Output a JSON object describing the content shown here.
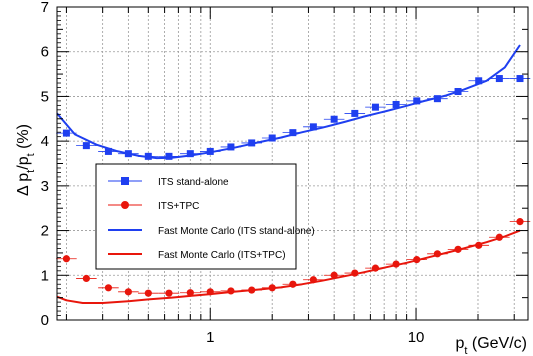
{
  "chart_data": {
    "type": "scatter",
    "xlabel": "p",
    "xlabel_sub": "t",
    "xlabel_units": " (GeV/c)",
    "ylabel": "Δ p",
    "ylabel_sub1": "t",
    "ylabel_mid": "/p",
    "ylabel_sub2": "t",
    "ylabel_units": " (%)",
    "xscale": "log",
    "xlim": [
      0.18,
      35
    ],
    "ylim": [
      0,
      7
    ],
    "x_ticks": [
      {
        "value": 1,
        "label": "1"
      },
      {
        "value": 10,
        "label": "10"
      }
    ],
    "y_ticks": [
      "0",
      "1",
      "2",
      "3",
      "4",
      "5",
      "6",
      "7"
    ],
    "grid": "dashed",
    "legend_position": "center-left",
    "series": [
      {
        "name": "ITS stand-alone",
        "kind": "points",
        "marker": "square",
        "color": "#1f3ff0",
        "x": [
          0.2,
          0.25,
          0.32,
          0.4,
          0.5,
          0.63,
          0.8,
          1.0,
          1.26,
          1.59,
          2.0,
          2.52,
          3.17,
          4.0,
          5.04,
          6.35,
          8.0,
          10.08,
          12.7,
          16.0,
          20.16,
          25.4,
          32.0
        ],
        "y": [
          4.18,
          3.9,
          3.77,
          3.72,
          3.66,
          3.66,
          3.72,
          3.77,
          3.87,
          3.96,
          4.07,
          4.19,
          4.32,
          4.49,
          4.62,
          4.76,
          4.82,
          4.9,
          4.95,
          5.11,
          5.35,
          5.4,
          5.4
        ]
      },
      {
        "name": "ITS+TPC",
        "kind": "points",
        "marker": "circle",
        "color": "#e8160c",
        "x": [
          0.2,
          0.25,
          0.32,
          0.4,
          0.5,
          0.63,
          0.8,
          1.0,
          1.26,
          1.59,
          2.0,
          2.52,
          3.17,
          4.0,
          5.04,
          6.35,
          8.0,
          10.08,
          12.7,
          16.0,
          20.16,
          25.4,
          32.0
        ],
        "y": [
          1.37,
          0.93,
          0.72,
          0.63,
          0.6,
          0.6,
          0.61,
          0.63,
          0.65,
          0.67,
          0.72,
          0.8,
          0.9,
          1.0,
          1.05,
          1.16,
          1.25,
          1.35,
          1.48,
          1.58,
          1.67,
          1.85,
          2.2
        ]
      },
      {
        "name": "Fast Monte Carlo (ITS stand-alone)",
        "kind": "line",
        "color": "#1f3ff0",
        "x": [
          0.18,
          0.22,
          0.28,
          0.35,
          0.45,
          0.55,
          0.65,
          0.8,
          1.0,
          1.3,
          1.7,
          2.2,
          2.8,
          3.5,
          4.5,
          5.6,
          7.0,
          9.0,
          11.0,
          14.0,
          17.0,
          22.0,
          27.0,
          32.0
        ],
        "y": [
          4.62,
          4.15,
          3.92,
          3.78,
          3.67,
          3.62,
          3.63,
          3.68,
          3.75,
          3.85,
          3.97,
          4.08,
          4.2,
          4.3,
          4.43,
          4.55,
          4.66,
          4.79,
          4.9,
          5.02,
          5.15,
          5.35,
          5.65,
          6.15
        ]
      },
      {
        "name": "Fast Monte Carlo (ITS+TPC)",
        "kind": "line",
        "color": "#e8160c",
        "x": [
          0.18,
          0.2,
          0.24,
          0.3,
          0.4,
          0.5,
          0.65,
          0.8,
          1.0,
          1.3,
          1.7,
          2.2,
          2.8,
          3.5,
          4.5,
          5.6,
          7.0,
          9.0,
          11.0,
          14.0,
          17.0,
          22.0,
          27.0,
          32.0
        ],
        "y": [
          0.52,
          0.44,
          0.38,
          0.38,
          0.42,
          0.46,
          0.5,
          0.54,
          0.58,
          0.63,
          0.68,
          0.73,
          0.8,
          0.88,
          0.98,
          1.07,
          1.17,
          1.28,
          1.38,
          1.5,
          1.6,
          1.74,
          1.87,
          2.0
        ]
      }
    ]
  }
}
